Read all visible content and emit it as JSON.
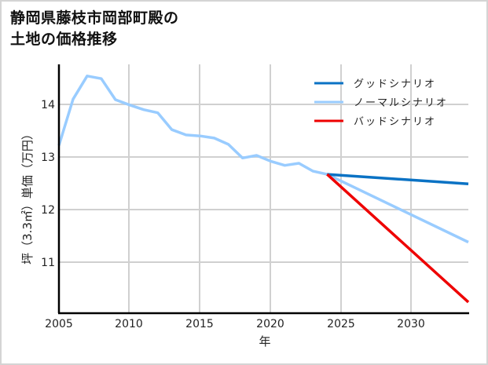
{
  "title": "静岡県藤枝市岡部町殿の\n土地の価格推移",
  "chart_data": {
    "type": "line",
    "title": "静岡県藤枝市岡部町殿の土地の価格推移",
    "xlabel": "年",
    "ylabel": "坪（3.3㎡）単価（万円）",
    "xlim": [
      2005,
      2034
    ],
    "ylim": [
      10.03,
      14.76
    ],
    "xticks": [
      2005,
      2010,
      2015,
      2020,
      2025,
      2030
    ],
    "yticks": [
      11,
      12,
      13,
      14
    ],
    "grid": true,
    "legend_position": "upper right",
    "series": [
      {
        "name": "グッドシナリオ",
        "color": "#0a72c4",
        "x": [
          2024,
          2034
        ],
        "values": [
          12.67,
          12.49
        ]
      },
      {
        "name": "ノーマルシナリオ",
        "color": "#99ccff",
        "x": [
          2005,
          2006,
          2007,
          2008,
          2009,
          2010,
          2011,
          2012,
          2013,
          2014,
          2015,
          2016,
          2017,
          2018,
          2019,
          2020,
          2021,
          2022,
          2023,
          2024,
          2034
        ],
        "values": [
          13.22,
          14.1,
          14.54,
          14.49,
          14.09,
          13.99,
          13.9,
          13.84,
          13.52,
          13.42,
          13.4,
          13.36,
          13.24,
          12.98,
          13.03,
          12.92,
          12.84,
          12.88,
          12.73,
          12.67,
          11.38
        ]
      },
      {
        "name": "バッドシナリオ",
        "color": "#ee0000",
        "x": [
          2024,
          2034
        ],
        "values": [
          12.67,
          10.24
        ]
      }
    ]
  },
  "legend": {
    "good": "グッドシナリオ",
    "normal": "ノーマルシナリオ",
    "bad": "バッドシナリオ"
  },
  "axes": {
    "xlabel": "年",
    "ylabel": "坪（3.3㎡）単価（万円）",
    "xticks": [
      "2005",
      "2010",
      "2015",
      "2020",
      "2025",
      "2030"
    ],
    "yticks": [
      "14",
      "13",
      "12",
      "11"
    ]
  }
}
